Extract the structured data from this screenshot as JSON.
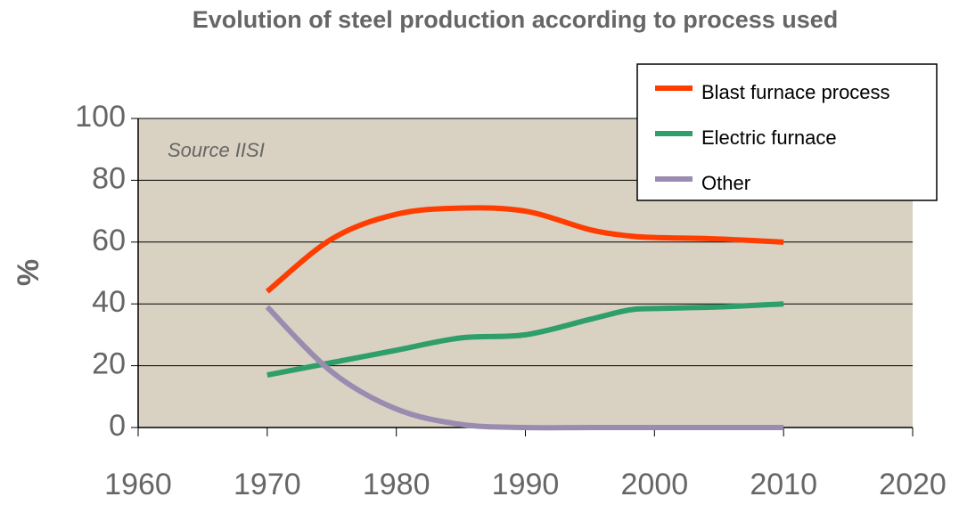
{
  "chart_data": {
    "type": "line",
    "title": "Evolution of steel production according to process used",
    "y_label": "%",
    "annotation": "Source IISI",
    "x": [
      1970,
      1975,
      1980,
      1985,
      1990,
      1995,
      1998,
      2000,
      2005,
      2010
    ],
    "series": [
      {
        "name": "Blast furnace process",
        "color": "#ff3d00",
        "values": [
          44,
          61,
          69,
          71,
          70,
          64,
          62,
          61.5,
          61,
          60
        ]
      },
      {
        "name": "Electric furnace",
        "color": "#2e9e6a",
        "values": [
          17,
          21,
          25,
          29,
          30,
          35,
          38,
          38.5,
          39,
          40
        ]
      },
      {
        "name": "Other",
        "color": "#9a8cb0",
        "values": [
          39,
          18,
          6,
          1,
          0,
          0,
          0,
          0,
          0,
          0
        ]
      }
    ],
    "xlim": [
      1960,
      2020
    ],
    "xticks": [
      1960,
      1970,
      1980,
      1990,
      2000,
      2010,
      2020
    ],
    "ylim": [
      0,
      100
    ],
    "yticks": [
      0,
      20,
      40,
      60,
      80,
      100
    ],
    "grid": true,
    "legend": "top-right",
    "plot_background": "#d9d1c2"
  }
}
